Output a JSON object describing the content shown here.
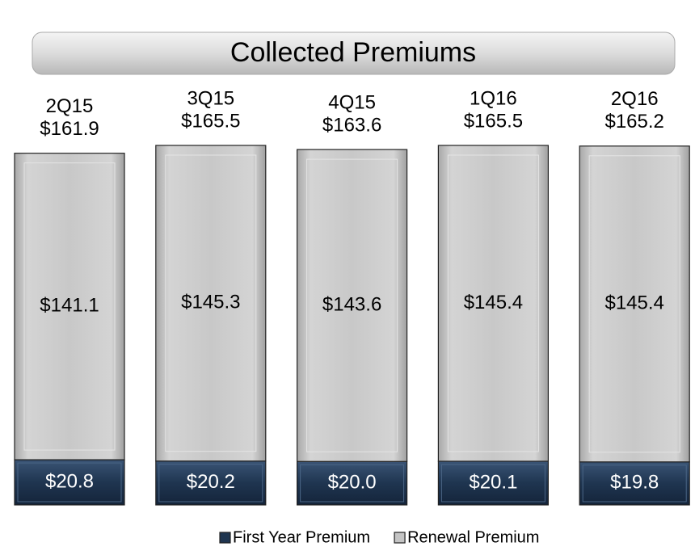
{
  "chart_data": {
    "type": "bar",
    "stacked": true,
    "title": "Collected Premiums",
    "categories": [
      "2Q15",
      "3Q15",
      "4Q15",
      "1Q16",
      "2Q16"
    ],
    "series": [
      {
        "name": "First Year Premium",
        "color": "#1f3550",
        "values": [
          20.8,
          20.2,
          20.0,
          20.1,
          19.8
        ],
        "value_labels": [
          "$20.8",
          "$20.2",
          "$20.0",
          "$20.1",
          "$19.8"
        ]
      },
      {
        "name": "Renewal Premium",
        "color": "#c4c4c4",
        "values": [
          141.1,
          145.3,
          143.6,
          145.4,
          145.4
        ],
        "value_labels": [
          "$141.1",
          "$145.3",
          "$143.6",
          "$145.4",
          "$145.4"
        ]
      }
    ],
    "totals": [
      161.9,
      165.5,
      163.6,
      165.5,
      165.2
    ],
    "total_labels": [
      "$161.9",
      "$165.5",
      "$163.6",
      "$165.5",
      "$165.2"
    ],
    "legend": "bottom"
  }
}
